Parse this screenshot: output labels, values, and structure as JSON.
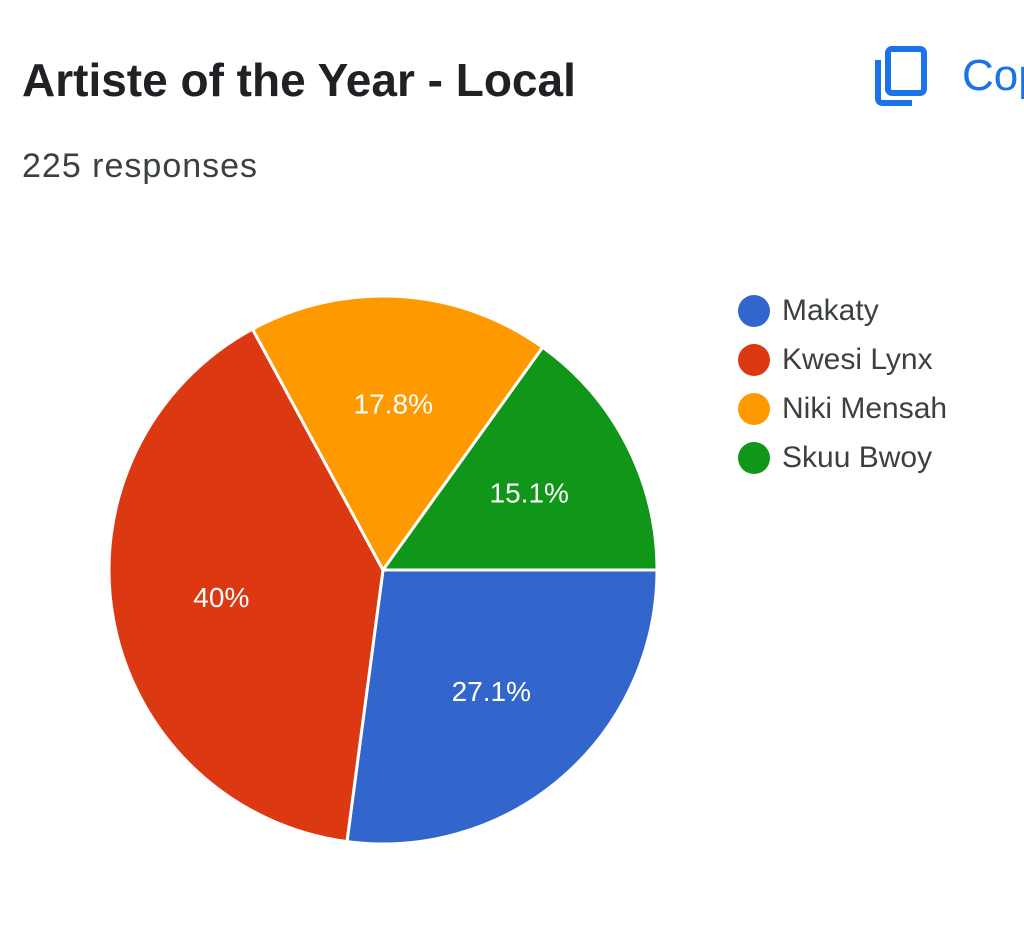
{
  "header": {
    "title": "Artiste of the Year - Local",
    "copy_label": "Copy",
    "copy_icon": "copy-icon",
    "accent_color": "#1a73e8"
  },
  "summary": {
    "responses": "225 responses"
  },
  "chart_data": {
    "type": "pie",
    "title": "Artiste of the Year - Local",
    "categories": [
      "Makaty",
      "Kwesi Lynx",
      "Niki Mensah",
      "Skuu Bwoy"
    ],
    "values": [
      27.1,
      40,
      17.8,
      15.1
    ],
    "labels": [
      "27.1%",
      "40%",
      "17.8%",
      "15.1%"
    ],
    "colors": [
      "#3366cc",
      "#dc3912",
      "#ff9900",
      "#109618"
    ],
    "start_angle_deg": 0,
    "direction": "clockwise",
    "legend_position": "right"
  }
}
